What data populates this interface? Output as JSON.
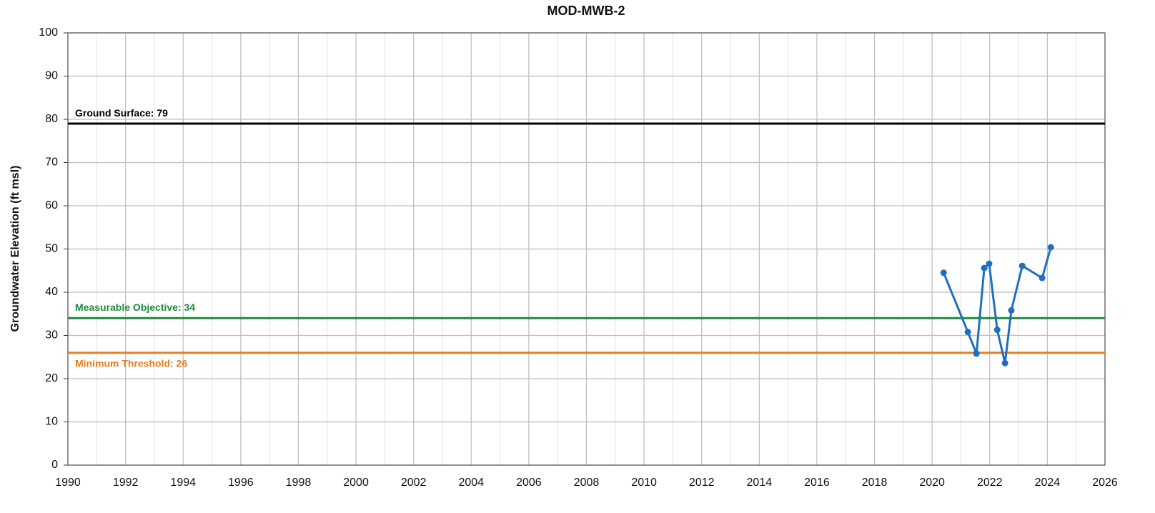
{
  "chart_data": {
    "type": "line",
    "title": "MOD-MWB-2",
    "y_label": "Groundwater Elevation (ft msl)",
    "xlim": [
      1990,
      2026
    ],
    "xticks": [
      1990,
      1992,
      1994,
      1996,
      1998,
      2000,
      2002,
      2004,
      2006,
      2008,
      2010,
      2012,
      2014,
      2016,
      2018,
      2020,
      2022,
      2024,
      2026
    ],
    "xminorticks": [
      1991,
      1993,
      1995,
      1997,
      1999,
      2001,
      2003,
      2005,
      2007,
      2009,
      2011,
      2013,
      2015,
      2017,
      2019,
      2021,
      2023,
      2025
    ],
    "ylim": [
      0,
      100
    ],
    "yticks": [
      0,
      10,
      20,
      30,
      40,
      50,
      60,
      70,
      80,
      90,
      100
    ],
    "grid": true,
    "reference_lines": [
      {
        "label": "Ground Surface: 79",
        "value": 79,
        "color": "#000000"
      },
      {
        "label": "Measurable Objective: 34",
        "value": 34,
        "color": "#1f8a3a"
      },
      {
        "label": "Minimum Threshold: 26",
        "value": 26,
        "color": "#e67e22"
      }
    ],
    "series": [
      {
        "color": "#1f6fc0",
        "x": [
          2020.4,
          2021.24,
          2021.54,
          2021.81,
          2021.98,
          2022.26,
          2022.53,
          2022.75,
          2023.13,
          2023.82,
          2024.12
        ],
        "values": [
          44.5,
          30.8,
          25.8,
          45.6,
          46.6,
          31.3,
          23.6,
          35.8,
          46.1,
          43.3,
          50.4
        ]
      }
    ]
  }
}
